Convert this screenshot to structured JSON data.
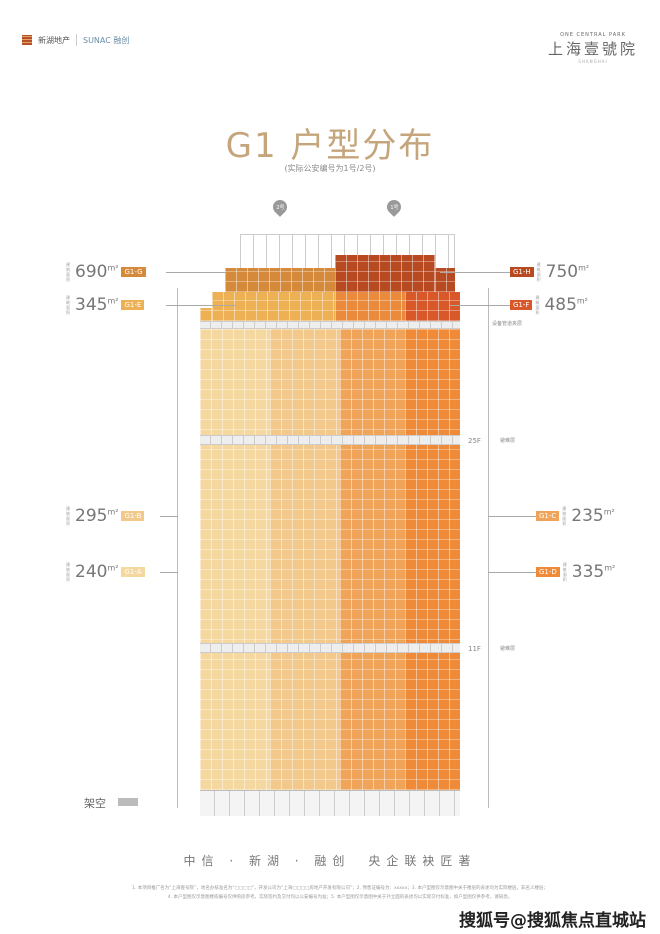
{
  "header": {
    "left_logo": {
      "developer": "新湖地产",
      "partner": "SUNAC 融创"
    },
    "right_logo": {
      "en": "ONE CENTRAL PARK",
      "cn": "上海壹號院",
      "sub": "SHANGHAI"
    }
  },
  "title": "G1 户型分布",
  "subtitle": "(实际公安编号为1号/2号)",
  "pins": [
    {
      "label": "2号"
    },
    {
      "label": "1号"
    }
  ],
  "units_left": [
    {
      "area": "690",
      "unit": "m²",
      "tag": "G1-G",
      "color": "#d48a3a"
    },
    {
      "area": "345",
      "unit": "m²",
      "tag": "G1-E",
      "color": "#eeb055"
    },
    {
      "area": "295",
      "unit": "m²",
      "tag": "G1-B",
      "color": "#f2c98a"
    },
    {
      "area": "240",
      "unit": "m²",
      "tag": "G1-A",
      "color": "#f5d7a0"
    }
  ],
  "units_right": [
    {
      "area": "750",
      "unit": "m²",
      "tag": "G1-H",
      "color": "#b84a22"
    },
    {
      "area": "485",
      "unit": "m²",
      "tag": "G1-F",
      "color": "#d9582a"
    },
    {
      "area": "235",
      "unit": "m²",
      "tag": "G1-C",
      "color": "#f0a45a"
    },
    {
      "area": "335",
      "unit": "m²",
      "tag": "G1-D",
      "color": "#ee8a38"
    }
  ],
  "area_prefix": "建筑面积",
  "floor_notes": {
    "equipment": "设备管道夹层",
    "f25": "25F",
    "f11": "11F",
    "refuge": "避难层"
  },
  "stilts": "架空",
  "slogan": "中信 · 新湖 · 融创　央企联袂匠著",
  "fine_print": [
    "1. 本项目推广名为“上海壹号院”，地名办核准名为“□□□□”，开发公司为“上海□□□□房地产开发有限公司”；2. 预售证编号为：xxxxx；3. 本户型图仅示意图中关于楼层的表述均为实际楼层，非名义楼层；",
    "4. 本户型图仅示意图楼栋编号仅供购房参考，实际签约及交付均以公安编号为准；5. 本户型图仅示意图中关于外立面的表述均以实际交付标准，如户型图仅供参考，请知悉。"
  ],
  "watermark": "搜狐号@搜狐焦点直城站"
}
